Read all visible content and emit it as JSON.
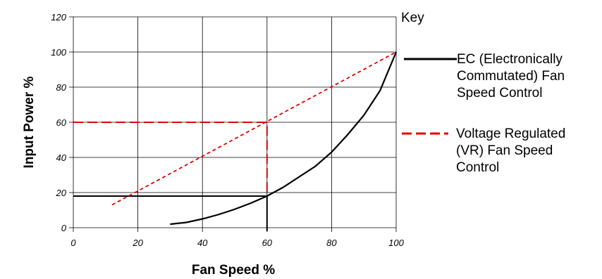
{
  "chart_data": {
    "type": "line",
    "xlabel": "Fan Speed %",
    "ylabel": "Input Power %",
    "xlim": [
      0,
      100
    ],
    "ylim": [
      0,
      120
    ],
    "x_ticks": [
      "0",
      "20",
      "40",
      "60",
      "80",
      "100"
    ],
    "y_ticks": [
      "0",
      "20",
      "40",
      "60",
      "80",
      "100",
      "120"
    ],
    "grid": "vertical and horizontal lines at each tick",
    "legend": {
      "title": "Key",
      "placement": "right",
      "entries": [
        {
          "lines": [
            "EC (Electronically",
            "Commutated) Fan",
            "Speed Control"
          ],
          "style": "solid",
          "color": "#000000"
        },
        {
          "lines": [
            "Voltage Regulated",
            "(VR) Fan Speed",
            "Control"
          ],
          "style": "dashed",
          "color": "#e00000"
        }
      ]
    },
    "series": [
      {
        "style": "solid",
        "color": "#000000",
        "x": [
          30,
          35,
          40,
          45,
          50,
          55,
          60,
          65,
          70,
          75,
          80,
          85,
          90,
          95,
          100
        ],
        "y": [
          2,
          3,
          5,
          7.5,
          10.5,
          14,
          18,
          23,
          29,
          35,
          43,
          53,
          64,
          78,
          100
        ]
      },
      {
        "style": "dashed",
        "color": "#e00000",
        "x": [
          12,
          100
        ],
        "y": [
          13,
          100
        ]
      }
    ],
    "reference_lines": [
      {
        "style": "solid",
        "color": "#000000",
        "points": [
          [
            0,
            18
          ],
          [
            60,
            18
          ],
          [
            60,
            -2
          ]
        ]
      },
      {
        "style": "dashed",
        "color": "#e00000",
        "points": [
          [
            0,
            60
          ],
          [
            60,
            60
          ],
          [
            60,
            18
          ]
        ]
      }
    ]
  }
}
